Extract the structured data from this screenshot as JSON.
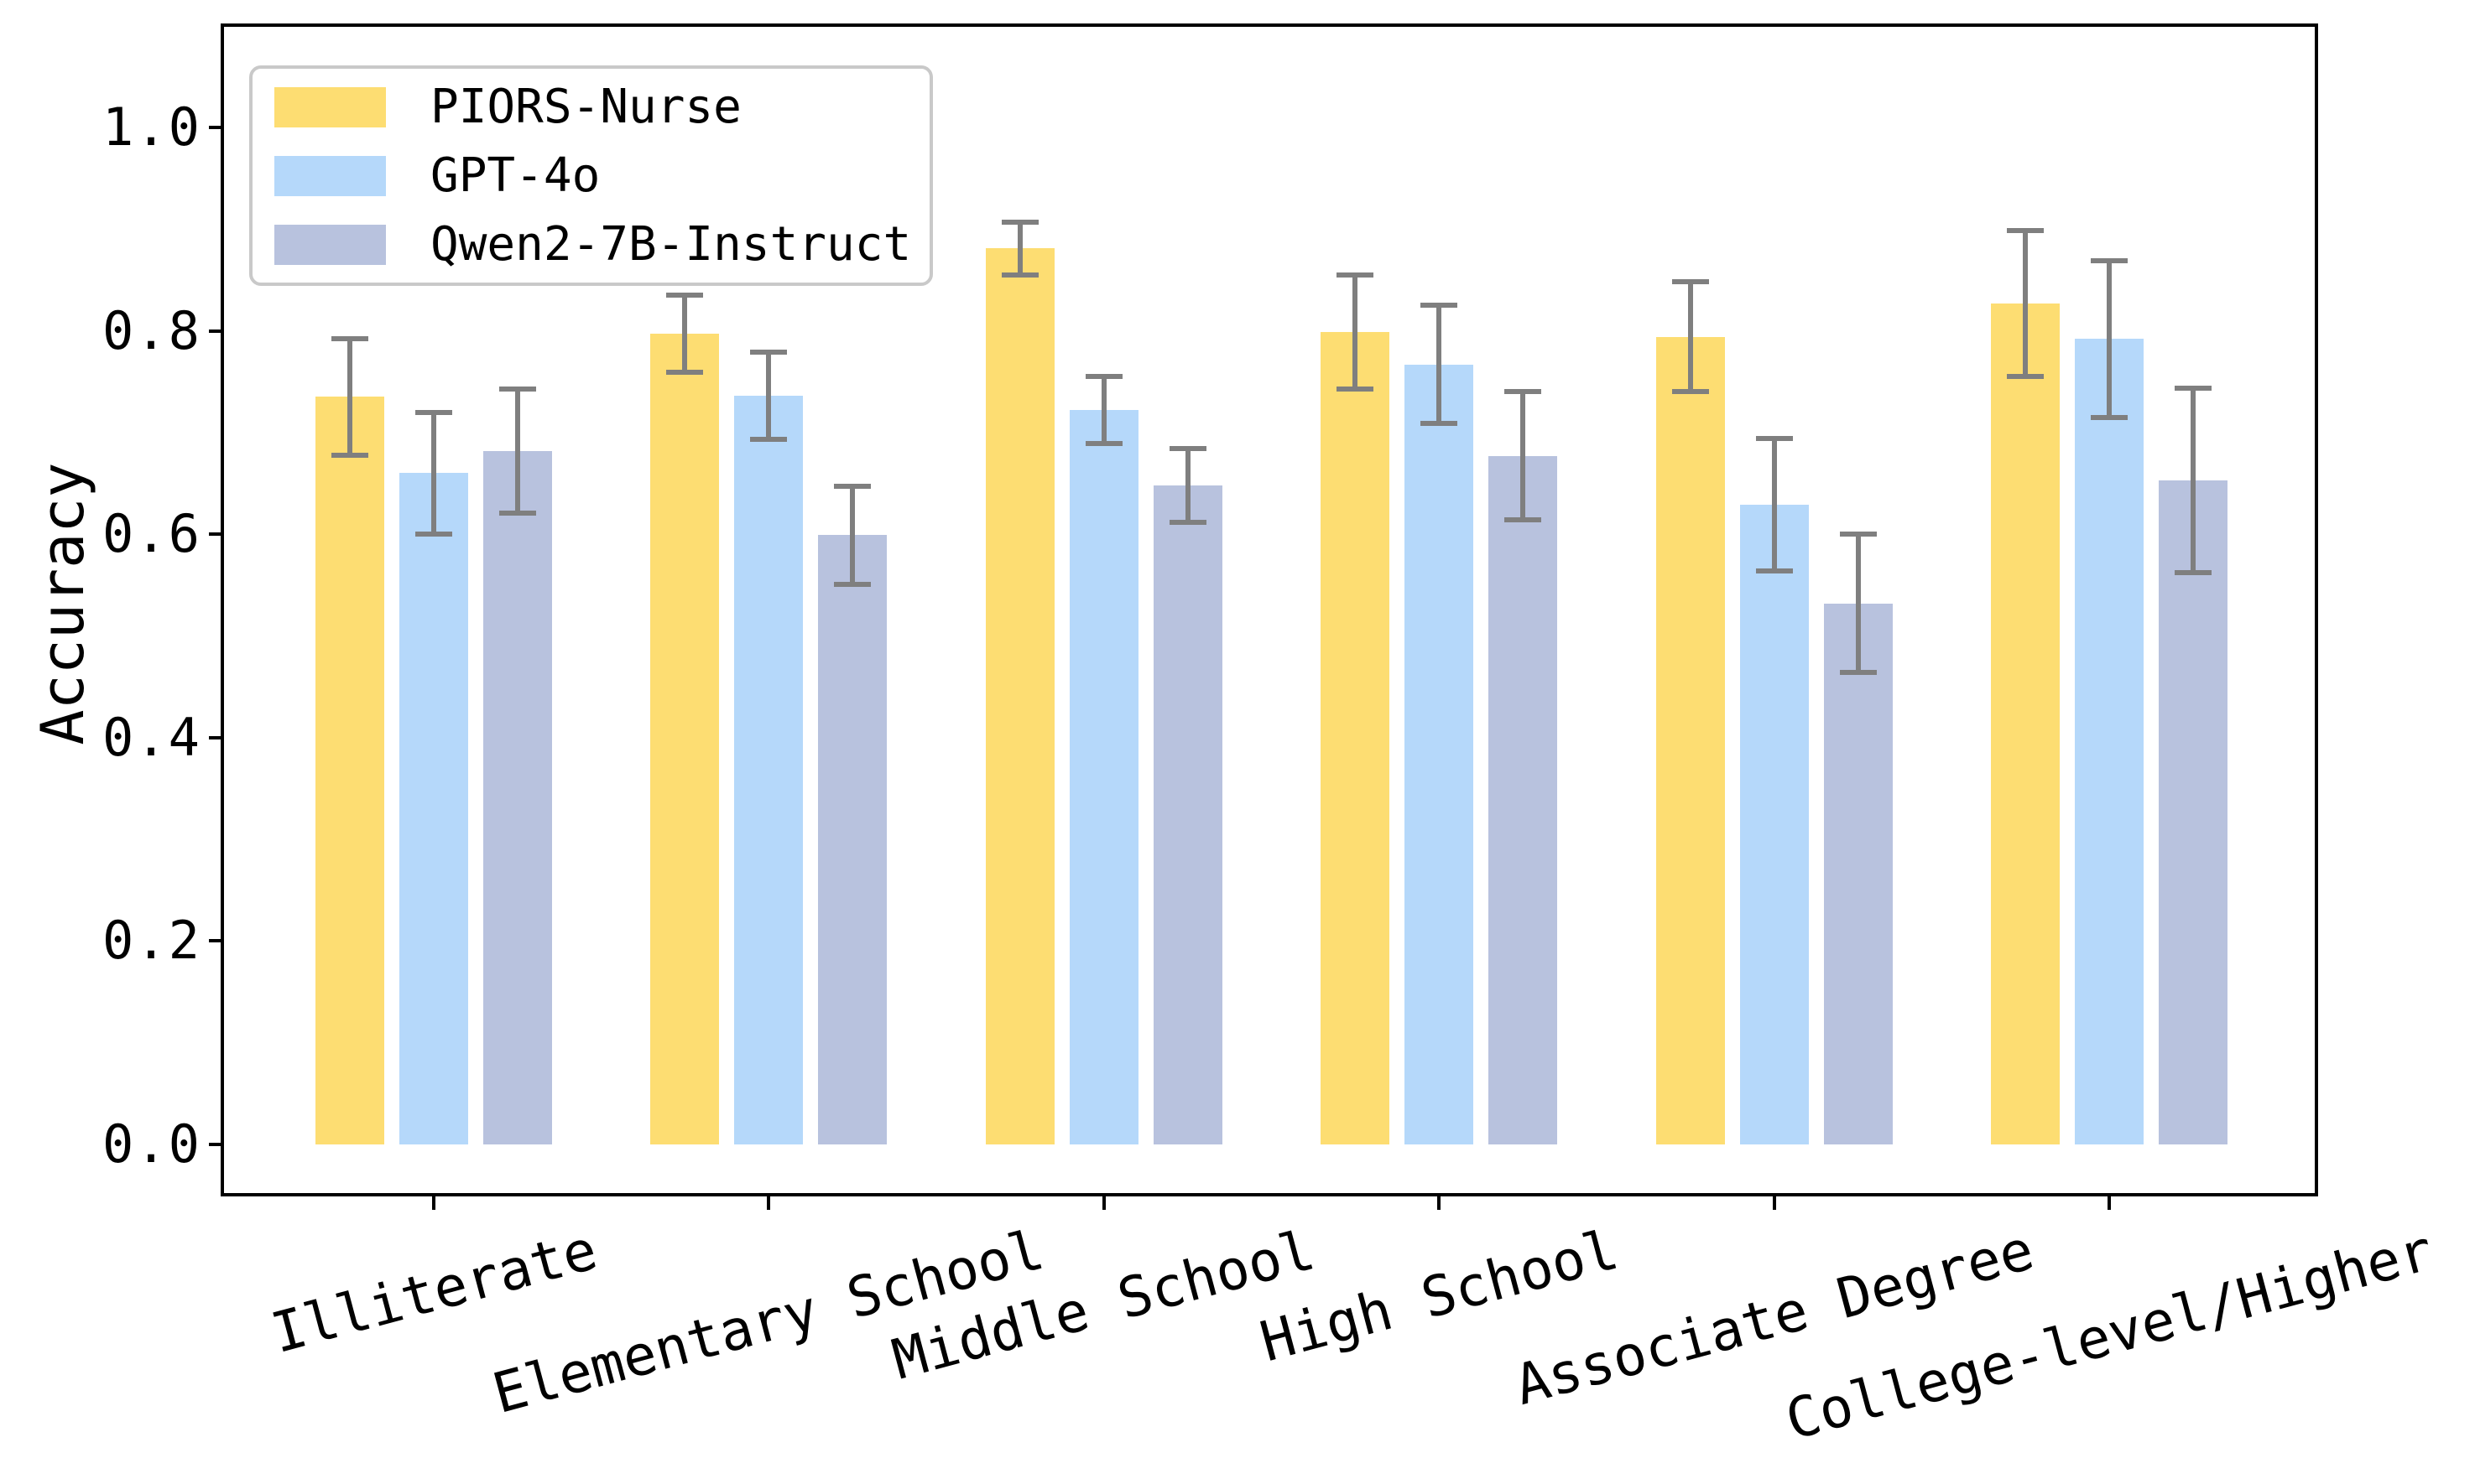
{
  "figure": {
    "background": "#ffffff",
    "axis_color": "#000000",
    "error_bar_color": "#7f7f7f",
    "legend_border_color": "#c9c9c9"
  },
  "chart_data": {
    "type": "bar",
    "title": "",
    "xlabel": "",
    "ylabel": "Accuracy",
    "categories": [
      "Illiterate",
      "Elementary School",
      "Middle School",
      "High School",
      "Associate Degree",
      "College-level/Higher"
    ],
    "series": [
      {
        "name": "PIORS-Nurse",
        "color": "#FDDD72",
        "values": [
          0.735,
          0.797,
          0.881,
          0.799,
          0.794,
          0.827
        ],
        "errors": [
          0.057,
          0.038,
          0.026,
          0.056,
          0.054,
          0.072
        ]
      },
      {
        "name": "GPT-4o",
        "color": "#B5D8FA",
        "values": [
          0.66,
          0.736,
          0.722,
          0.767,
          0.629,
          0.792
        ],
        "errors": [
          0.06,
          0.043,
          0.033,
          0.058,
          0.065,
          0.077
        ]
      },
      {
        "name": "Qwen2-7B-Instruct",
        "color": "#B8C2DE",
        "values": [
          0.682,
          0.599,
          0.648,
          0.677,
          0.532,
          0.653
        ],
        "errors": [
          0.061,
          0.048,
          0.036,
          0.063,
          0.068,
          0.091
        ]
      }
    ],
    "ylim": [
      -0.05,
      1.1
    ],
    "yticks": [
      0.0,
      0.2,
      0.4,
      0.6,
      0.8,
      1.0
    ],
    "ytick_labels": [
      "0.0",
      "0.2",
      "0.4",
      "0.6",
      "0.8",
      "1.0"
    ],
    "xtick_label_rotation_deg": 15,
    "grid": false,
    "error_bars": true,
    "legend_position": "upper left"
  }
}
